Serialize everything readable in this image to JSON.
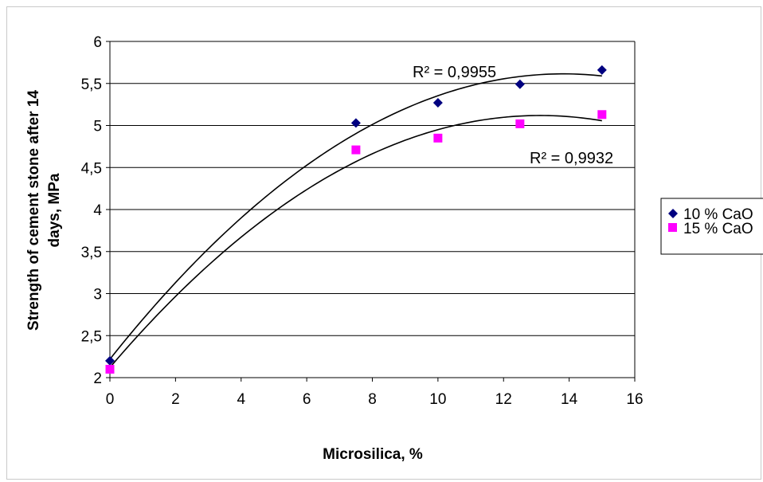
{
  "chart_data": {
    "type": "scatter",
    "title": "",
    "xlabel": "Microsilica, %",
    "ylabel_line1": "Strength of cement stone after 14",
    "ylabel_line2": "days, MPa",
    "xlim": [
      0,
      16
    ],
    "ylim": [
      2,
      6
    ],
    "x_ticks": [
      "0",
      "2",
      "4",
      "6",
      "8",
      "10",
      "12",
      "14",
      "16"
    ],
    "y_ticks": [
      "2",
      "2,5",
      "3",
      "3,5",
      "4",
      "4,5",
      "5",
      "5,5",
      "6"
    ],
    "grid": "horizontal",
    "legend_position": "right",
    "series": [
      {
        "name": "10 % CaO",
        "marker": "diamond",
        "color": "#000080",
        "x": [
          0,
          7.5,
          10,
          12.5,
          15
        ],
        "y": [
          2.2,
          5.03,
          5.27,
          5.49,
          5.66
        ],
        "trendline": "polynomial",
        "r2_label": "R² = 0,9955"
      },
      {
        "name": "15 % CaO",
        "marker": "square",
        "color": "#ff00ff",
        "x": [
          0,
          7.5,
          10,
          12.5,
          15
        ],
        "y": [
          2.1,
          4.71,
          4.85,
          5.02,
          5.13
        ],
        "trendline": "polynomial",
        "r2_label": "R² = 0,9932"
      }
    ]
  }
}
